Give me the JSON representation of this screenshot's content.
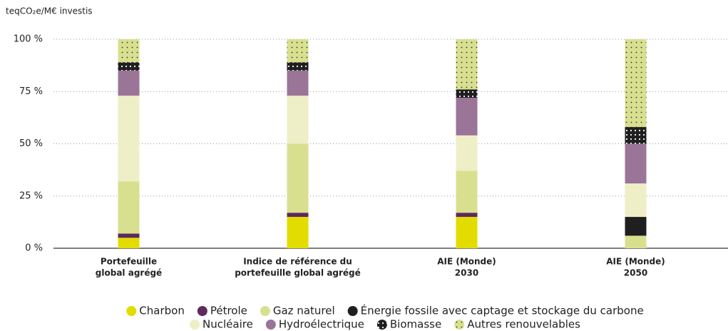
{
  "chart_data": {
    "type": "stacked_bar",
    "y_label": "teqCO₂e/M€ investis",
    "categories": [
      [
        "Portefeuille",
        "global agrégé"
      ],
      [
        "Indice de référence du",
        "portefeuille global agrégé"
      ],
      [
        "AIE (Monde)",
        "2030"
      ],
      [
        "AIE (Monde)",
        "2050"
      ]
    ],
    "series": [
      {
        "name": "Charbon",
        "color": "#e3dc00",
        "values": [
          5,
          15,
          15,
          0
        ]
      },
      {
        "name": "Pétrole",
        "color": "#5e2a5c",
        "values": [
          2,
          2,
          2,
          0
        ]
      },
      {
        "name": "Gaz naturel",
        "color": "#d8e08f",
        "values": [
          25,
          33,
          20,
          6
        ]
      },
      {
        "name": "Énergie fossile avec captage et stockage du carbone",
        "color": "#1f1f1f",
        "values": [
          0,
          0,
          0,
          9
        ]
      },
      {
        "name": "Nucléaire",
        "color": "#eeefc6",
        "values": [
          41,
          23,
          17,
          16
        ]
      },
      {
        "name": "Hydroélectrique",
        "color": "#9a7598",
        "values": [
          12,
          12,
          18,
          19
        ]
      },
      {
        "name": "Biomasse",
        "color": "#1f1f1f",
        "pattern": "dots-light",
        "values": [
          4,
          4,
          4,
          8
        ]
      },
      {
        "name": "Autres renouvelables",
        "color": "#d8e08f",
        "pattern": "dots-dark",
        "values": [
          11,
          11,
          24,
          42
        ]
      }
    ],
    "ylim": [
      0,
      100
    ],
    "yticks": [
      {
        "value": 0,
        "label": "0 %"
      },
      {
        "value": 25,
        "label": "25 %"
      },
      {
        "value": 50,
        "label": "50 %"
      },
      {
        "value": 75,
        "label": "75 %"
      },
      {
        "value": 100,
        "label": "100 %"
      }
    ],
    "grid": true
  }
}
